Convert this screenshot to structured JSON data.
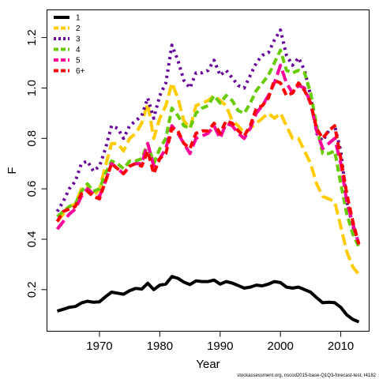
{
  "footnote": "stockassessment.org, nscod2015-base-Q1Q3-forecast-test, r4182",
  "chart_data": {
    "type": "line",
    "xlabel": "Year",
    "ylabel": "F",
    "xlim": [
      1961.3,
      2014.7
    ],
    "ylim": [
      0.035,
      1.31
    ],
    "xticks": [
      1970,
      1980,
      1990,
      2000,
      2010
    ],
    "yticks": [
      0.2,
      0.4,
      0.6,
      0.8,
      1.0,
      1.2
    ],
    "ytick_labels": [
      "0.2",
      "0.4",
      "0.6",
      "0.8",
      "1.0",
      "1.2"
    ],
    "grid": false,
    "legend_position": "top-left",
    "x": [
      1963,
      1964,
      1965,
      1966,
      1967,
      1968,
      1969,
      1970,
      1971,
      1972,
      1973,
      1974,
      1975,
      1976,
      1977,
      1978,
      1979,
      1980,
      1981,
      1982,
      1983,
      1984,
      1985,
      1986,
      1987,
      1988,
      1989,
      1990,
      1991,
      1992,
      1993,
      1994,
      1995,
      1996,
      1997,
      1998,
      1999,
      2000,
      2001,
      2002,
      2003,
      2004,
      2005,
      2006,
      2007,
      2008,
      2009,
      2010,
      2011,
      2012,
      2013
    ],
    "series": [
      {
        "name": "1",
        "color": "#000000",
        "dash": "solid",
        "values": [
          0.115,
          0.122,
          0.13,
          0.133,
          0.147,
          0.154,
          0.15,
          0.152,
          0.172,
          0.19,
          0.186,
          0.182,
          0.196,
          0.205,
          0.202,
          0.225,
          0.2,
          0.218,
          0.222,
          0.252,
          0.245,
          0.23,
          0.22,
          0.235,
          0.232,
          0.232,
          0.238,
          0.222,
          0.232,
          0.226,
          0.216,
          0.206,
          0.21,
          0.218,
          0.215,
          0.222,
          0.232,
          0.228,
          0.21,
          0.206,
          0.21,
          0.2,
          0.19,
          0.168,
          0.148,
          0.15,
          0.148,
          0.13,
          0.1,
          0.082,
          0.072
        ]
      },
      {
        "name": "2",
        "color": "#FFCC00",
        "dash": "long",
        "values": [
          0.47,
          0.5,
          0.53,
          0.54,
          0.6,
          0.61,
          0.57,
          0.6,
          0.69,
          0.78,
          0.78,
          0.75,
          0.8,
          0.82,
          0.86,
          0.94,
          0.8,
          0.88,
          0.93,
          1.02,
          0.96,
          0.87,
          0.84,
          0.93,
          0.94,
          0.95,
          0.97,
          0.95,
          0.93,
          0.87,
          0.85,
          0.82,
          0.84,
          0.86,
          0.88,
          0.9,
          0.88,
          0.9,
          0.85,
          0.8,
          0.8,
          0.75,
          0.7,
          0.62,
          0.57,
          0.56,
          0.55,
          0.45,
          0.35,
          0.29,
          0.26
        ]
      },
      {
        "name": "3",
        "color": "#660099",
        "dash": "dot",
        "values": [
          0.51,
          0.55,
          0.6,
          0.63,
          0.7,
          0.71,
          0.67,
          0.69,
          0.76,
          0.85,
          0.84,
          0.8,
          0.85,
          0.87,
          0.89,
          0.96,
          0.88,
          0.97,
          1.02,
          1.17,
          1.11,
          1.03,
          1.0,
          1.06,
          1.06,
          1.07,
          1.11,
          1.05,
          1.07,
          1.04,
          1.01,
          1.0,
          1.05,
          1.1,
          1.13,
          1.14,
          1.19,
          1.23,
          1.13,
          1.09,
          1.12,
          1.07,
          0.97,
          0.82,
          0.79,
          0.83,
          0.85,
          0.75,
          0.55,
          0.45,
          0.38
        ]
      },
      {
        "name": "4",
        "color": "#66CC00",
        "dash": "dash",
        "values": [
          0.49,
          0.51,
          0.53,
          0.54,
          0.59,
          0.62,
          0.59,
          0.6,
          0.66,
          0.71,
          0.7,
          0.68,
          0.71,
          0.71,
          0.72,
          0.78,
          0.7,
          0.76,
          0.8,
          0.92,
          0.89,
          0.85,
          0.84,
          0.9,
          0.92,
          0.93,
          0.97,
          0.94,
          0.97,
          0.95,
          0.91,
          0.9,
          0.94,
          0.99,
          1.02,
          1.05,
          1.1,
          1.15,
          1.07,
          1.06,
          1.07,
          1.06,
          0.98,
          0.85,
          0.74,
          0.74,
          0.75,
          0.62,
          0.5,
          0.42,
          0.37
        ]
      },
      {
        "name": "5",
        "color": "#FF0099",
        "dash": "long",
        "values": [
          0.44,
          0.47,
          0.5,
          0.52,
          0.57,
          0.6,
          0.58,
          0.57,
          0.63,
          0.7,
          0.68,
          0.66,
          0.69,
          0.7,
          0.7,
          0.78,
          0.69,
          0.72,
          0.76,
          0.85,
          0.82,
          0.78,
          0.74,
          0.8,
          0.81,
          0.82,
          0.85,
          0.8,
          0.86,
          0.85,
          0.82,
          0.8,
          0.84,
          0.9,
          0.93,
          0.97,
          1.02,
          1.09,
          1.02,
          0.98,
          1.01,
          1.0,
          0.94,
          0.83,
          0.76,
          0.78,
          0.8,
          0.7,
          0.55,
          0.46,
          0.38
        ]
      },
      {
        "name": "6+",
        "color": "#FF0000",
        "dash": "dash",
        "values": [
          0.47,
          0.51,
          0.52,
          0.53,
          0.58,
          0.59,
          0.57,
          0.56,
          0.63,
          0.7,
          0.68,
          0.66,
          0.69,
          0.7,
          0.69,
          0.75,
          0.66,
          0.72,
          0.74,
          0.84,
          0.83,
          0.78,
          0.76,
          0.82,
          0.83,
          0.83,
          0.86,
          0.82,
          0.87,
          0.86,
          0.83,
          0.81,
          0.85,
          0.92,
          0.93,
          0.96,
          1.03,
          1.02,
          0.97,
          0.98,
          1.02,
          0.99,
          0.94,
          0.84,
          0.8,
          0.83,
          0.85,
          0.72,
          0.58,
          0.47,
          0.38
        ]
      }
    ]
  }
}
